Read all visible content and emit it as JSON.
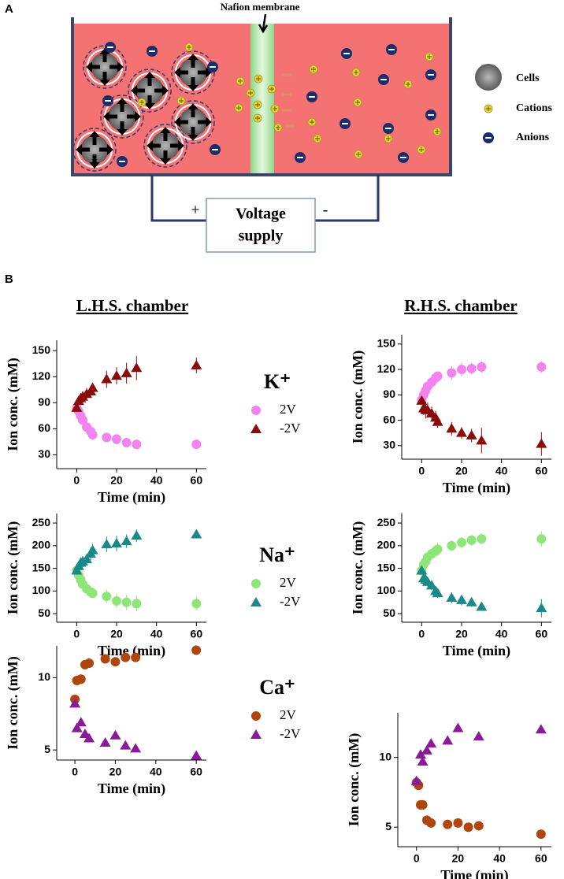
{
  "diagram": {
    "panel_a": "A",
    "panel_b": "B",
    "membrane_label": "Nafion membrane",
    "legend": [
      "Cells",
      "Cations",
      "Anions"
    ],
    "supply": [
      "Voltage",
      "supply"
    ],
    "plus": "+",
    "minus": "-"
  },
  "columns": [
    "L.H.S. chamber",
    "R.H.S. chamber"
  ],
  "chart_data": [
    {
      "type": "scatter",
      "legend_title": "K⁺",
      "xlabel": "Time (min)",
      "ylabel": "Ion conc. (mM)",
      "x": [
        0,
        1,
        2,
        3,
        5,
        7,
        8,
        15,
        20,
        25,
        30,
        60
      ],
      "xlim": [
        -10,
        65
      ],
      "xticks": [
        0,
        20,
        40,
        60
      ],
      "ylim": [
        14,
        162
      ],
      "yticks": [
        30,
        60,
        90,
        120,
        150
      ],
      "series": [
        {
          "name": "2V",
          "color": "#f283f0",
          "marker": "circle",
          "values": [
            84,
            80,
            75,
            70,
            62,
            57,
            53,
            50,
            48,
            44,
            42,
            42
          ],
          "errors": [
            3,
            3,
            3,
            4,
            5,
            6,
            6,
            5,
            6,
            4,
            5,
            5
          ]
        },
        {
          "name": "-2V",
          "color": "#8b0a0a",
          "marker": "triangle",
          "values": [
            84,
            92,
            95,
            97,
            100,
            103,
            107,
            117,
            121,
            124,
            130,
            133
          ],
          "errors": [
            4,
            5,
            6,
            6,
            7,
            6,
            6,
            10,
            10,
            12,
            14,
            9
          ]
        }
      ]
    },
    {
      "type": "scatter",
      "xlabel": "Time (min)",
      "ylabel": "Ion conc. (mM)",
      "x": [
        0,
        1,
        2,
        3,
        5,
        7,
        8,
        15,
        20,
        25,
        30,
        60
      ],
      "xlim": [
        -10,
        65
      ],
      "xticks": [
        0,
        20,
        40,
        60
      ],
      "ylim": [
        14,
        161
      ],
      "yticks": [
        30,
        60,
        90,
        120,
        150
      ],
      "series": [
        {
          "color": "#f283f0",
          "marker": "circle",
          "values": [
            84,
            90,
            95,
            100,
            105,
            110,
            112,
            116,
            120,
            121,
            123,
            123
          ],
          "errors": [
            4,
            5,
            5,
            5,
            6,
            6,
            6,
            8,
            8,
            7,
            7,
            7
          ]
        },
        {
          "color": "#8b0a0a",
          "marker": "triangle",
          "values": [
            83,
            74,
            72,
            72,
            68,
            63,
            58,
            50,
            45,
            42,
            36,
            32
          ],
          "errors": [
            5,
            8,
            10,
            9,
            8,
            8,
            7,
            8,
            7,
            8,
            15,
            14
          ]
        }
      ]
    },
    {
      "type": "scatter",
      "legend_title": "Na⁺",
      "xlabel": "Time (min)",
      "ylabel": "Ion conc. (mM)",
      "x": [
        0,
        1,
        2,
        3,
        5,
        7,
        8,
        15,
        20,
        25,
        30,
        60
      ],
      "xlim": [
        -10,
        65
      ],
      "xticks": [
        0,
        20,
        40,
        60
      ],
      "ylim": [
        31,
        271
      ],
      "yticks": [
        50,
        100,
        150,
        200,
        250
      ],
      "series": [
        {
          "name": "2V",
          "color": "#8fe678",
          "marker": "circle",
          "values": [
            145,
            135,
            125,
            115,
            105,
            98,
            95,
            88,
            78,
            75,
            72,
            72
          ],
          "errors": [
            8,
            8,
            8,
            10,
            10,
            10,
            10,
            15,
            15,
            17,
            17,
            15
          ]
        },
        {
          "name": "-2V",
          "color": "#1a8a88",
          "marker": "triangle",
          "values": [
            145,
            155,
            162,
            165,
            170,
            182,
            190,
            203,
            205,
            210,
            222,
            225
          ],
          "errors": [
            8,
            10,
            12,
            12,
            12,
            14,
            14,
            17,
            17,
            15,
            14,
            6
          ]
        }
      ]
    },
    {
      "type": "scatter",
      "xlabel": "Time (min)",
      "ylabel": "Ion conc. (mM)",
      "x": [
        0,
        1,
        2,
        3,
        5,
        7,
        8,
        15,
        20,
        25,
        30,
        60
      ],
      "xlim": [
        -10,
        65
      ],
      "xticks": [
        0,
        20,
        40,
        60
      ],
      "ylim": [
        31,
        271
      ],
      "yticks": [
        50,
        100,
        150,
        200,
        250
      ],
      "series": [
        {
          "color": "#8fe678",
          "marker": "circle",
          "values": [
            145,
            158,
            165,
            175,
            182,
            188,
            192,
            200,
            207,
            212,
            215,
            215
          ],
          "errors": [
            8,
            8,
            10,
            10,
            12,
            12,
            14,
            12,
            12,
            12,
            12,
            17
          ]
        },
        {
          "color": "#1a8a88",
          "marker": "triangle",
          "values": [
            145,
            128,
            125,
            120,
            112,
            100,
            95,
            85,
            80,
            75,
            65,
            62
          ],
          "errors": [
            8,
            12,
            12,
            10,
            10,
            10,
            10,
            12,
            12,
            10,
            6,
            20
          ]
        }
      ]
    },
    {
      "type": "scatter",
      "legend_title": "Ca⁺",
      "xlabel": "Time (min)",
      "ylabel": "Ion conc. (mM)",
      "x": [
        0,
        1,
        2,
        3,
        5,
        7,
        8,
        15,
        20,
        25,
        30,
        60
      ],
      "xlim": [
        -9,
        65
      ],
      "xticks": [
        0,
        20,
        40,
        60
      ],
      "ylim": [
        4.3,
        12.2
      ],
      "yticks": [
        5,
        10
      ],
      "series": [
        {
          "name": "2V",
          "color": "#b0460f",
          "marker": "circle",
          "values": [
            8.5,
            9.8,
            null,
            9.9,
            10.9,
            11.0,
            null,
            11.3,
            11.1,
            11.4,
            11.4,
            11.9
          ]
        },
        {
          "name": "-2V",
          "color": "#8b1a9b",
          "marker": "triangle",
          "values": [
            8.2,
            6.5,
            null,
            6.9,
            6.1,
            5.8,
            null,
            5.5,
            6.0,
            5.3,
            5.1,
            4.6
          ]
        }
      ]
    },
    {
      "type": "scatter",
      "xlabel": "Time (min)",
      "ylabel": "Ion conc. (mM)",
      "x": [
        0,
        1,
        2,
        3,
        5,
        7,
        8,
        15,
        20,
        25,
        30,
        60
      ],
      "xlim": [
        -9,
        65
      ],
      "xticks": [
        0,
        20,
        40,
        60
      ],
      "ylim": [
        3.6,
        13.2
      ],
      "yticks": [
        5,
        10
      ],
      "series": [
        {
          "color": "#b0460f",
          "marker": "circle",
          "values": [
            8.2,
            8.0,
            6.6,
            6.6,
            5.5,
            5.3,
            null,
            5.2,
            5.3,
            5.0,
            5.1,
            4.5
          ]
        },
        {
          "color": "#8b1a9b",
          "marker": "triangle",
          "values": [
            8.3,
            null,
            10.2,
            9.7,
            10.5,
            11.0,
            null,
            11.2,
            12.1,
            null,
            11.5,
            12.0
          ]
        }
      ]
    }
  ]
}
